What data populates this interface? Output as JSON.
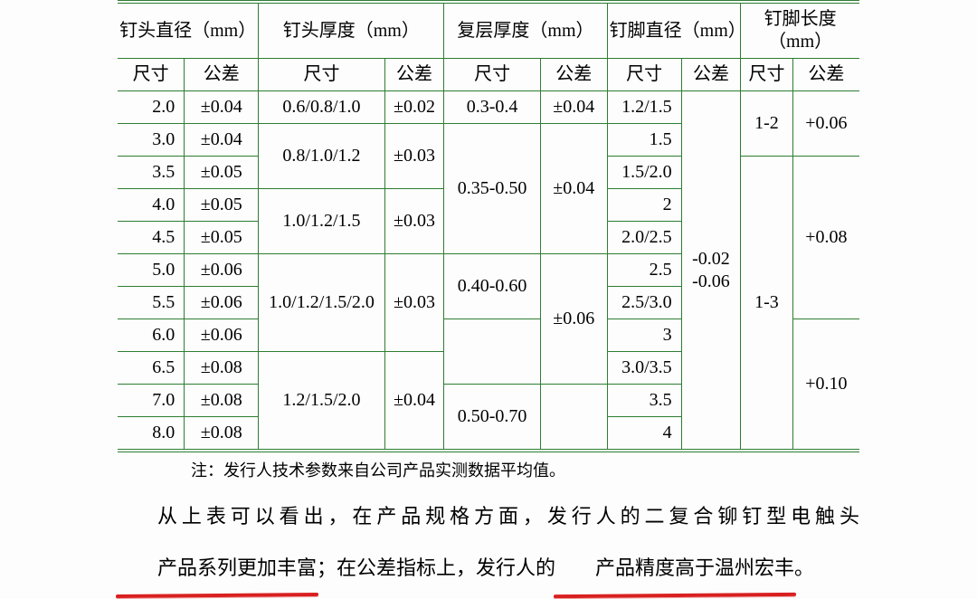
{
  "table": {
    "border_color": "#2e7d32",
    "text_color": "#000000",
    "font_size": 20,
    "headers_top": [
      "钉头直径（mm）",
      "钉头厚度（mm）",
      "复层厚度（mm）",
      "钉脚直径（mm）",
      "钉脚长度（mm）"
    ],
    "headers_sub": [
      "尺寸",
      "公差",
      "尺寸",
      "公差",
      "尺寸",
      "公差",
      "尺寸",
      "公差",
      "尺寸",
      "公差"
    ],
    "r1": {
      "d": "2.0",
      "tol": "±0.04",
      "th": "0.6/0.8/1.0",
      "th_tol": "±0.02",
      "fl": "0.3-0.4",
      "fl_tol": "±0.04",
      "pin": "1.2/1.5",
      "pin_len": "1-2",
      "pin_len_tol": "+0.06"
    },
    "r2": {
      "d": "3.0",
      "tol": "±0.04",
      "th": "0.8/1.0/1.2",
      "th_tol": "±0.03",
      "pin": "1.5"
    },
    "r3": {
      "d": "3.5",
      "tol": "±0.05",
      "fl": "0.35-0.50",
      "fl_tol": "±0.04",
      "pin": "1.5/2.0"
    },
    "r4": {
      "d": "4.0",
      "tol": "±0.05",
      "th": "1.0/1.2/1.5",
      "th_tol": "±0.03",
      "pin": "2"
    },
    "r5": {
      "d": "4.5",
      "tol": "±0.05",
      "pin": "2.0/2.5",
      "pin_tol": "-0.02 -0.06",
      "pin_len": "1-3",
      "pin_len_tol": "+0.08"
    },
    "r6": {
      "d": "5.0",
      "tol": "±0.06",
      "th": "1.0/1.2/1.5/2.0",
      "th_tol": "±0.03",
      "pin": "2.5"
    },
    "r7": {
      "d": "5.5",
      "tol": "±0.06",
      "fl": "0.40-0.60",
      "pin": "2.5/3.0"
    },
    "r8": {
      "d": "6.0",
      "tol": "±0.06",
      "fl_tol": "±0.06",
      "pin": "3"
    },
    "r9": {
      "d": "6.5",
      "tol": "±0.08",
      "th": "1.2/1.5/2.0",
      "th_tol": "±0.04",
      "pin": "3.0/3.5",
      "pin_len_tol": "+0.10"
    },
    "r10": {
      "d": "7.0",
      "tol": "±0.08",
      "fl": "0.50-0.70",
      "pin": "3.5"
    },
    "r11": {
      "d": "8.0",
      "tol": "±0.08",
      "pin": "4"
    }
  },
  "note": "注：发行人技术参数来自公司产品实测数据平均值。",
  "para": {
    "t1": "从上表可以看出，在产品规格方面，发行人的二复合铆钉型电触头",
    "u1": "产品系列更加丰富",
    "t2": "；在公差指标上，发行人的",
    "u2": "产品精度高于温州宏丰",
    "t3": "。"
  },
  "colors": {
    "underline": "#d92020",
    "background": "#fdfdfd"
  }
}
